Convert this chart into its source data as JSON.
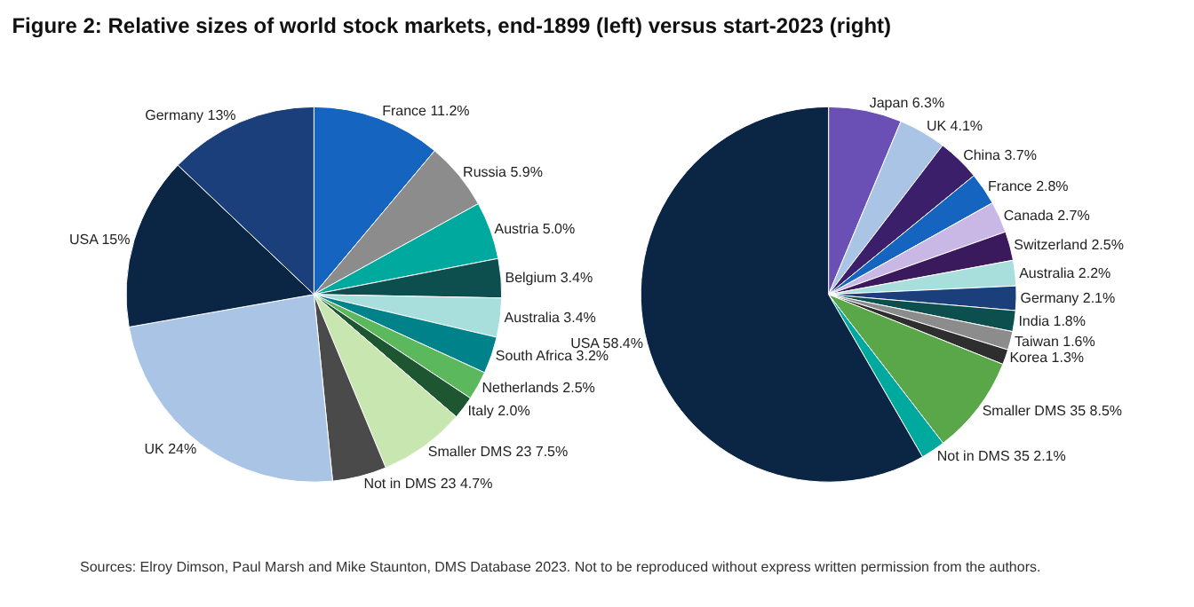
{
  "chart_data": [
    {
      "type": "pie",
      "title": "Figure 2: Relative sizes of world stock markets, end-1899 (left) versus start-2023 (right)",
      "annotations": [
        "Sources: Elroy Dimson, Paul Marsh and Mike Staunton, DMS Database 2023. Not to be reproduced without express written permission from the authors."
      ],
      "categories": [
        "France",
        "Russia",
        "Austria",
        "Belgium",
        "Australia",
        "South Africa",
        "Netherlands",
        "Italy",
        "Smaller DMS 23",
        "Not in DMS 23",
        "UK",
        "USA",
        "Germany"
      ],
      "values": [
        11.2,
        5.9,
        5.0,
        3.4,
        3.4,
        3.2,
        2.5,
        2.0,
        7.5,
        4.7,
        24,
        15,
        13
      ],
      "value_labels": [
        "11.2%",
        "5.9%",
        "5.0%",
        "3.4%",
        "3.4%",
        "3.2%",
        "2.5%",
        "2.0%",
        "7.5%",
        "4.7%",
        "24%",
        "15%",
        "13%"
      ],
      "colors": [
        "#1565c0",
        "#8c8c8c",
        "#00a99d",
        "#0d4f4f",
        "#a8dedb",
        "#00828a",
        "#5cb85c",
        "#1e5631",
        "#c8e6b0",
        "#4a4a4a",
        "#a9c4e4",
        "#0b2545",
        "#1a3f7a"
      ]
    },
    {
      "type": "pie",
      "categories": [
        "Japan",
        "UK",
        "China",
        "France",
        "Canada",
        "Switzerland",
        "Australia",
        "Germany",
        "India",
        "Taiwan",
        "Korea",
        "Smaller DMS 35",
        "Not in DMS 35",
        "USA"
      ],
      "values": [
        6.3,
        4.1,
        3.7,
        2.8,
        2.7,
        2.5,
        2.2,
        2.1,
        1.8,
        1.6,
        1.3,
        8.5,
        2.1,
        58.4
      ],
      "value_labels": [
        "6.3%",
        "4.1%",
        "3.7%",
        "2.8%",
        "2.7%",
        "2.5%",
        "2.2%",
        "2.1%",
        "1.8%",
        "1.6%",
        "1.3%",
        "8.5%",
        "2.1%",
        "58.4%"
      ],
      "colors": [
        "#6a4fb5",
        "#a9c4e4",
        "#3b1f6b",
        "#1565c0",
        "#c9b8e6",
        "#3a1a5c",
        "#a8dedb",
        "#1a3f7a",
        "#0d4f4f",
        "#8c8c8c",
        "#2e2e2e",
        "#5aa74a",
        "#00a99d",
        "#0b2545"
      ]
    }
  ]
}
